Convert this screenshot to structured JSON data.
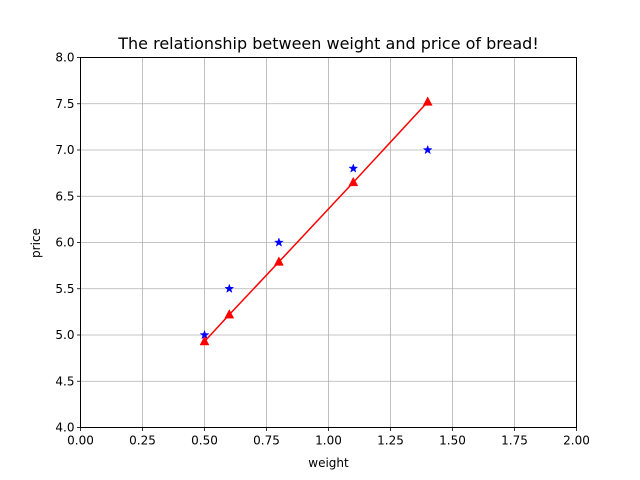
{
  "chart_data": {
    "type": "scatter",
    "title": "The relationship between weight and price of bread!",
    "xlabel": "weight",
    "ylabel": "price",
    "xlim": [
      0,
      2
    ],
    "ylim": [
      4,
      8
    ],
    "xticks": [
      0,
      0.25,
      0.5,
      0.75,
      1.0,
      1.25,
      1.5,
      1.75,
      2.0
    ],
    "xtick_labels": [
      "0.00",
      "0.25",
      "0.50",
      "0.75",
      "1.00",
      "1.25",
      "1.50",
      "1.75",
      "2.00"
    ],
    "yticks": [
      4.0,
      4.5,
      5.0,
      5.5,
      6.0,
      6.5,
      7.0,
      7.5,
      8.0
    ],
    "ytick_labels": [
      "4.0",
      "4.5",
      "5.0",
      "5.5",
      "6.0",
      "6.5",
      "7.0",
      "7.5",
      "8.0"
    ],
    "grid": true,
    "series": [
      {
        "type": "scatter",
        "marker": "star",
        "color": "#0000ff",
        "x": [
          0.5,
          0.6,
          0.8,
          1.1,
          1.4
        ],
        "y": [
          5.0,
          5.5,
          6.0,
          6.8,
          7.0
        ]
      },
      {
        "type": "line",
        "marker": "triangle",
        "color": "#ff0000",
        "x": [
          0.5,
          0.6,
          0.8,
          1.1,
          1.4
        ],
        "y": [
          4.93,
          5.22,
          5.79,
          6.65,
          7.52
        ]
      }
    ]
  }
}
